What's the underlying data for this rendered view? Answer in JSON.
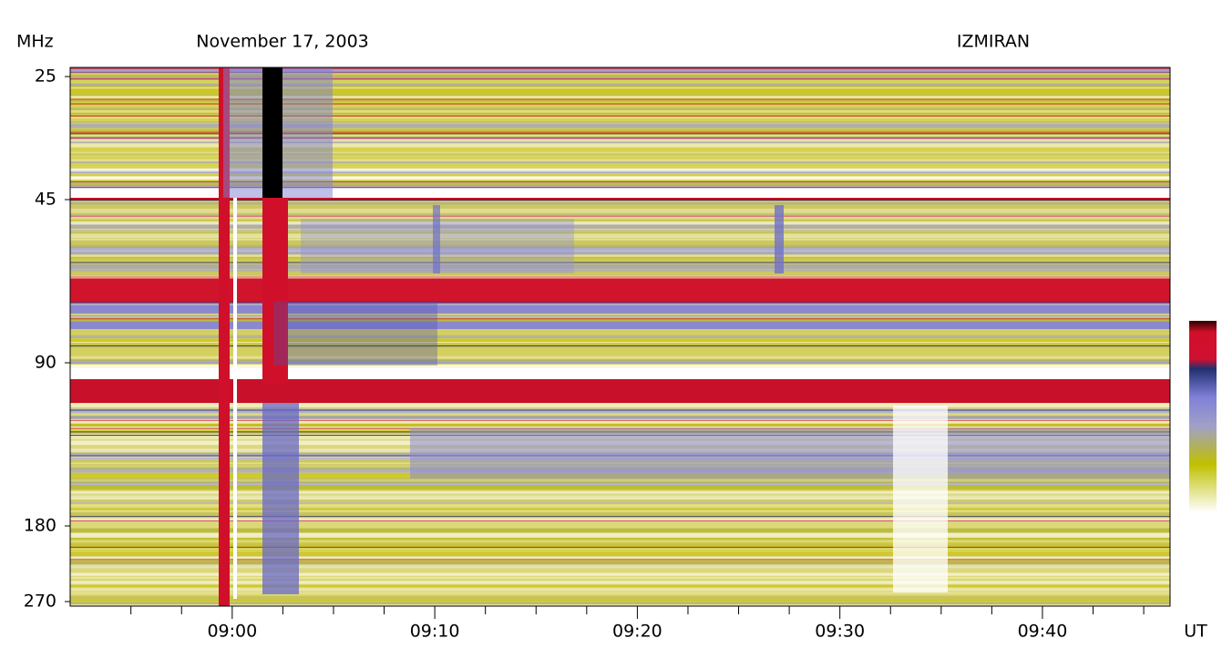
{
  "chart_data": {
    "type": "spectrogram",
    "title": "November 17, 2003",
    "source": "IZMIRAN",
    "ylabel": "MHz",
    "xlabel": "UT",
    "yticks": [
      25,
      45,
      90,
      180,
      270
    ],
    "xlim": [
      532,
      586.3
    ],
    "xticks": [
      {
        "value": 540,
        "label": "09:00"
      },
      {
        "value": 550,
        "label": "09:10"
      },
      {
        "value": 560,
        "label": "09:20"
      },
      {
        "value": 570,
        "label": "09:30"
      },
      {
        "value": 580,
        "label": "09:40"
      }
    ],
    "xticks_minor": [
      535,
      537.5,
      542.5,
      545,
      547.5,
      552.5,
      555,
      557.5,
      562.5,
      565,
      567.5,
      572.5,
      575,
      577.5,
      582.5,
      585
    ]
  }
}
